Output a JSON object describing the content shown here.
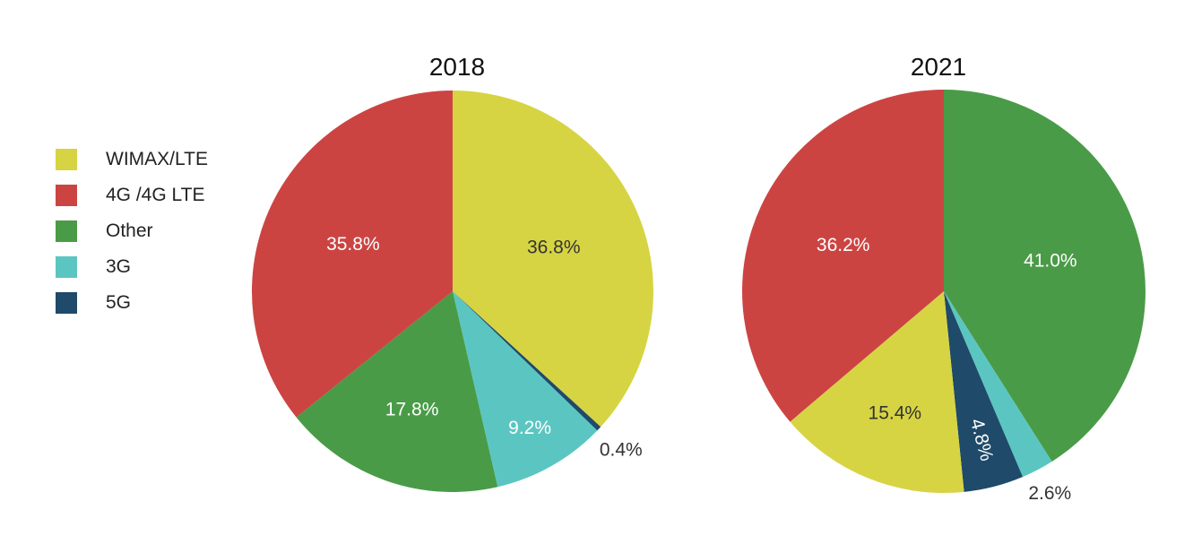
{
  "chart_data": {
    "type": "pie",
    "legend": {
      "placement": "left",
      "entries": [
        "WIMAX/LTE",
        "4G /4G LTE",
        "Other",
        "3G",
        "5G"
      ]
    },
    "colors": {
      "WIMAX/LTE": "#d6d443",
      "4G /4G LTE": "#cc4442",
      "Other": "#4a9b47",
      "3G": "#5bc6c1",
      "5G": "#1f4a69"
    },
    "charts": [
      {
        "title": "2018",
        "slices": [
          {
            "name": "WIMAX/LTE",
            "value": 36.8,
            "label": "36.8%"
          },
          {
            "name": "5G",
            "value": 0.4,
            "label": "0.4%"
          },
          {
            "name": "3G",
            "value": 9.2,
            "label": "9.2%"
          },
          {
            "name": "Other",
            "value": 17.8,
            "label": "17.8%"
          },
          {
            "name": "4G /4G LTE",
            "value": 35.8,
            "label": "35.8%"
          }
        ]
      },
      {
        "title": "2021",
        "slices": [
          {
            "name": "Other",
            "value": 41.0,
            "label": "41.0%"
          },
          {
            "name": "3G",
            "value": 2.6,
            "label": "2.6%"
          },
          {
            "name": "5G",
            "value": 4.8,
            "label": "4.8%"
          },
          {
            "name": "WIMAX/LTE",
            "value": 15.4,
            "label": "15.4%"
          },
          {
            "name": "4G /4G LTE",
            "value": 36.2,
            "label": "36.2%"
          }
        ]
      }
    ]
  }
}
